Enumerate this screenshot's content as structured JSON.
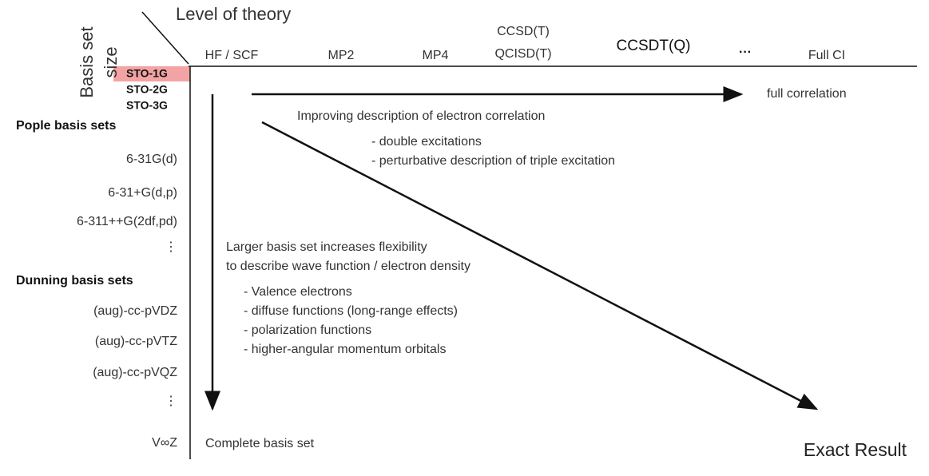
{
  "header": {
    "title": "Level of theory",
    "axis_label": [
      "Basis set",
      "size"
    ]
  },
  "columns": [
    "HF / SCF",
    "MP2",
    "MP4",
    [
      "CCSD(T)",
      "QCISD(T)"
    ],
    "CCSDT(Q)",
    "···",
    "Full CI"
  ],
  "sto": [
    "STO-1G",
    "STO-2G",
    "STO-3G"
  ],
  "rows": [
    {
      "label": "Pople basis sets",
      "group": true
    },
    {
      "label": "6-31G(d)"
    },
    {
      "label": "6-31+G(d,p)"
    },
    {
      "label": "6-311++G(2df,pd)"
    },
    {
      "label": "⋮"
    },
    {
      "label": "Dunning basis sets",
      "group": true
    },
    {
      "label": "(aug)-cc-pVDZ"
    },
    {
      "label": "(aug)-cc-pVTZ"
    },
    {
      "label": "(aug)-cc-pVQZ"
    },
    {
      "label": "⋮"
    },
    {
      "label": "V∞Z"
    }
  ],
  "correlation": {
    "arrow_label": "full correlation",
    "title": "Improving description of electron correlation",
    "points": [
      "- double excitations",
      "- perturbative description of triple excitation"
    ]
  },
  "basis": {
    "title": [
      "Larger basis set increases flexibility",
      "to describe wave function / electron density"
    ],
    "points": [
      "- Valence electrons",
      "- diffuse functions (long-range effects)",
      "- polarization functions",
      "- higher-angular momentum orbitals"
    ],
    "end_label": "Complete basis set"
  },
  "result": "Exact Result"
}
